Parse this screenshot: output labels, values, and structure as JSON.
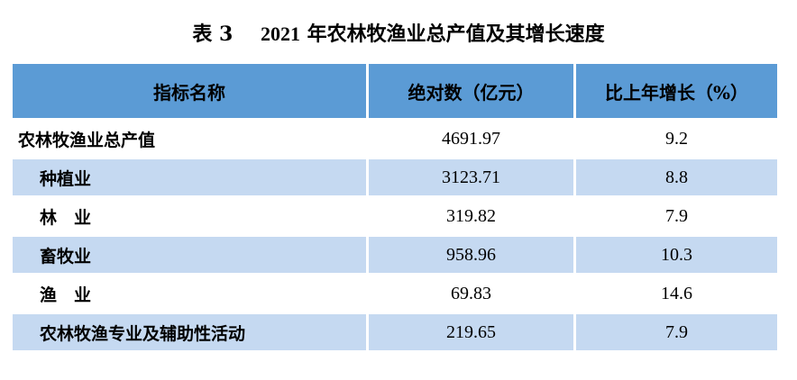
{
  "title": {
    "prefix": "表 3",
    "year": "2021",
    "text": "年农林牧渔业总产值及其增长速度"
  },
  "table": {
    "headers": [
      "指标名称",
      "绝对数（亿元）",
      "比上年增长（%）"
    ],
    "rows": [
      {
        "label": "农林牧渔业总产值",
        "value": "4691.97",
        "growth": "9.2"
      },
      {
        "label": "种植业",
        "value": "3123.71",
        "growth": "8.8"
      },
      {
        "label": "林　业",
        "value": "319.82",
        "growth": "7.9"
      },
      {
        "label": "畜牧业",
        "value": "958.96",
        "growth": "10.3"
      },
      {
        "label": "渔　业",
        "value": "69.83",
        "growth": "14.6"
      },
      {
        "label": "农林牧渔专业及辅助性活动",
        "value": "219.65",
        "growth": "7.9"
      }
    ]
  },
  "colors": {
    "header_bg": "#5b9bd5",
    "shaded_row_bg": "#c5d9f1"
  }
}
